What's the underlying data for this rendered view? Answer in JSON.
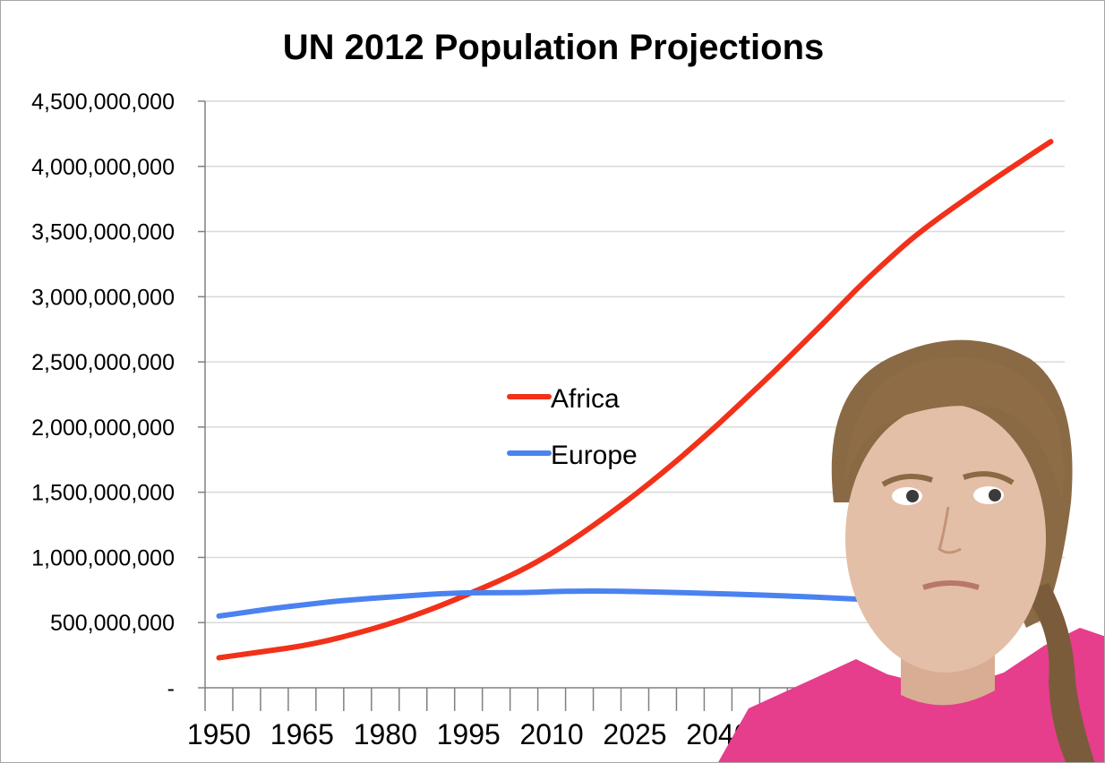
{
  "chart_data": {
    "type": "line",
    "title": "UN 2012 Population Projections",
    "xlabel": "",
    "ylabel": "",
    "ylim": [
      0,
      4500000000
    ],
    "grid": true,
    "legend_position": "center",
    "y_ticks": [
      0,
      500000000,
      1000000000,
      1500000000,
      2000000000,
      2500000000,
      3000000000,
      3500000000,
      4000000000,
      4500000000
    ],
    "y_tick_labels": [
      "-",
      "500,000,000",
      "1,000,000,000",
      "1,500,000,000",
      "2,000,000,000",
      "2,500,000,000",
      "3,000,000,000",
      "3,500,000,000",
      "4,000,000,000",
      "4,500,000,000"
    ],
    "x_tick_labels": [
      "1950",
      "1965",
      "1980",
      "1995",
      "2010",
      "2025",
      "2040"
    ],
    "x": [
      1950,
      1955,
      1960,
      1965,
      1970,
      1975,
      1980,
      1985,
      1990,
      1995,
      2000,
      2005,
      2010,
      2015,
      2020,
      2025,
      2030,
      2035,
      2040,
      2045,
      2050,
      2055,
      2060,
      2065,
      2070,
      2075,
      2080,
      2085,
      2090,
      2095,
      2100
    ],
    "series": [
      {
        "name": "Africa",
        "color": "#f2311a",
        "values": [
          230000000,
          260000000,
          290000000,
          320000000,
          365000000,
          420000000,
          480000000,
          550000000,
          630000000,
          720000000,
          810000000,
          910000000,
          1030000000,
          1170000000,
          1320000000,
          1480000000,
          1650000000,
          1830000000,
          2020000000,
          2220000000,
          2420000000,
          2630000000,
          2840000000,
          3060000000,
          3260000000,
          3450000000,
          3610000000,
          3760000000,
          3910000000,
          4050000000,
          4190000000
        ]
      },
      {
        "name": "Europe",
        "color": "#4a82f0",
        "values": [
          550000000,
          580000000,
          610000000,
          635000000,
          660000000,
          678000000,
          694000000,
          708000000,
          722000000,
          729000000,
          729000000,
          730000000,
          738000000,
          742000000,
          742000000,
          738000000,
          734000000,
          728000000,
          722000000,
          715000000,
          708000000,
          700000000,
          690000000,
          680000000,
          672000000,
          665000000,
          658000000,
          652000000,
          647000000,
          642000000,
          639000000
        ]
      }
    ]
  },
  "overlay": {
    "icon": "person-photo-icon",
    "shirt_color": "#e63d8c",
    "hair_color": "#8a6a45",
    "skin_color": "#e4bfa7"
  }
}
